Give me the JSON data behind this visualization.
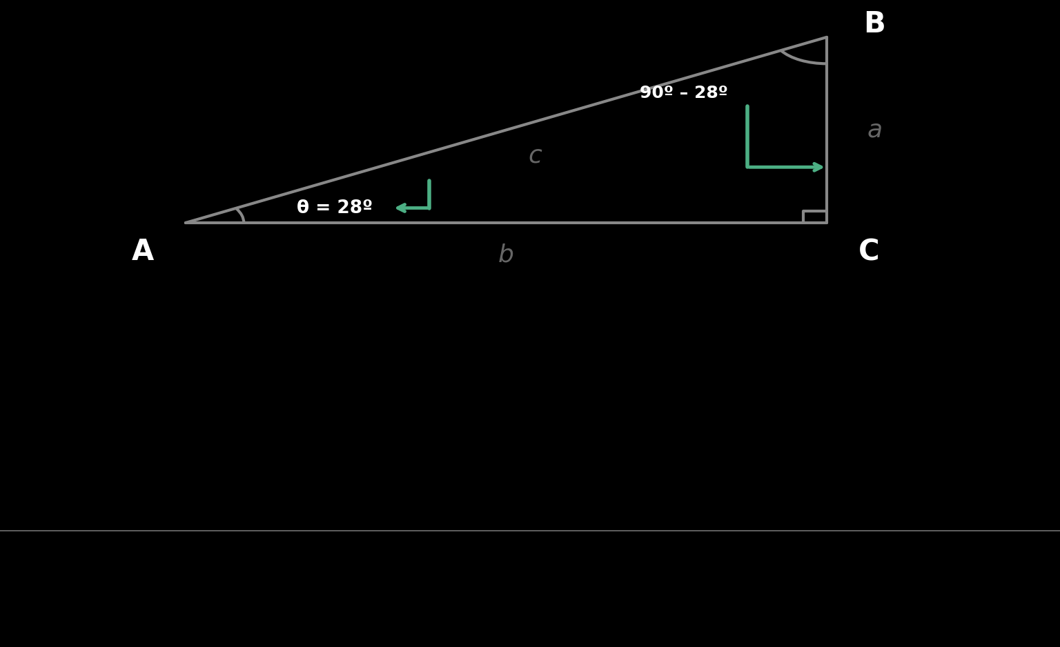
{
  "bg_color": "#000000",
  "caption_bg": "#cccccc",
  "triangle_color": "#888888",
  "triangle_lw": 3.0,
  "green_color": "#4caf84",
  "label_color": "#666666",
  "white_color": "#ffffff",
  "black_color": "#000000",
  "A": [
    0.175,
    0.58
  ],
  "B": [
    0.78,
    0.93
  ],
  "C": [
    0.78,
    0.58
  ],
  "label_A": "A",
  "label_B": "B",
  "label_C": "C",
  "label_a": "a",
  "label_b": "b",
  "label_c": "c",
  "label_theta": "θ = 28º",
  "label_angle_B": "90º – 28º",
  "caption_fontsize": 26,
  "vertex_fontsize": 30,
  "side_label_fontsize": 26
}
